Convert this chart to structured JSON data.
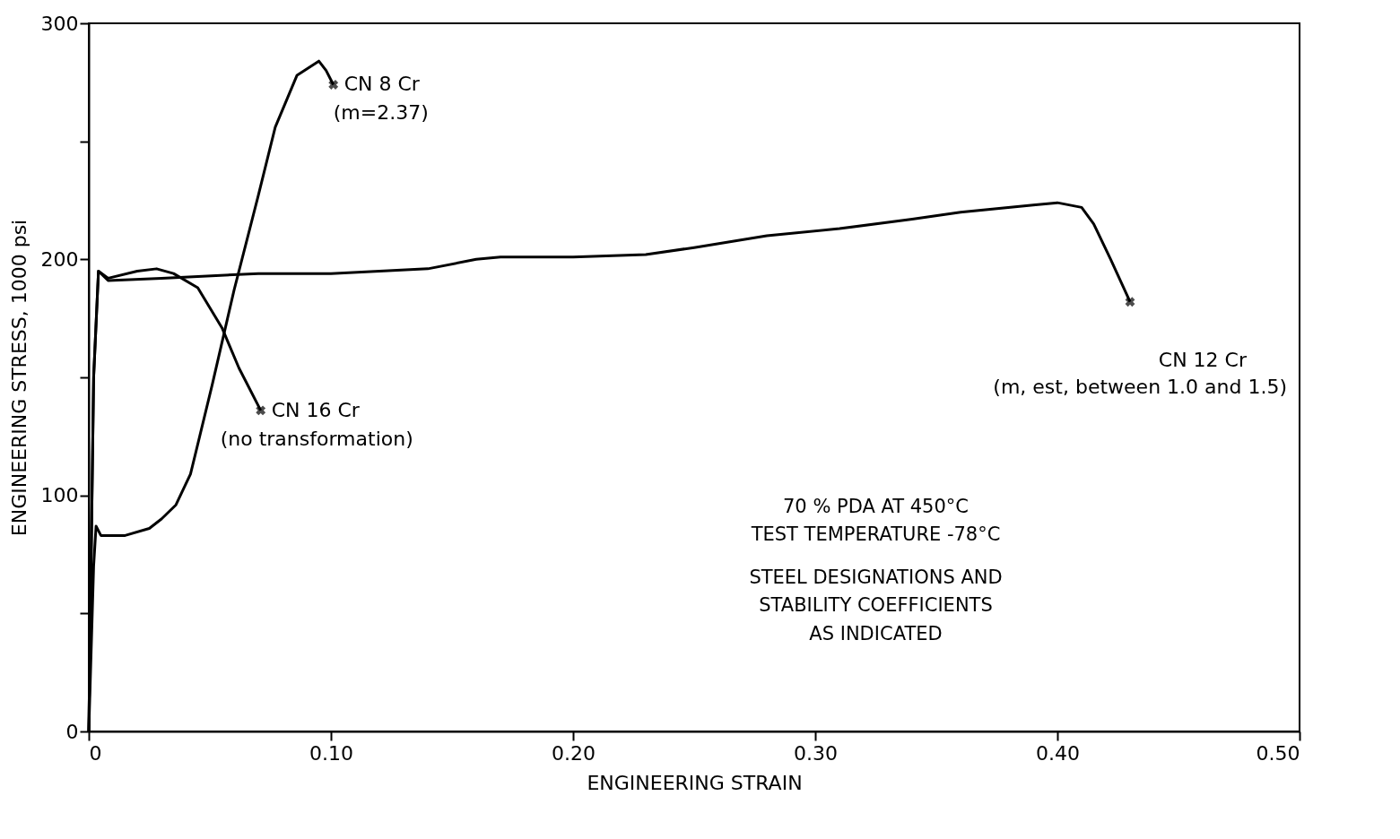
{
  "chart_data": {
    "type": "line",
    "xlabel": "ENGINEERING  STRAIN",
    "ylabel": "ENGINEERING  STRESS, 1000 psi",
    "xlim": [
      0,
      0.5
    ],
    "ylim": [
      0,
      300
    ],
    "xticks": [
      {
        "value": 0,
        "label": "0"
      },
      {
        "value": 0.1,
        "label": "0.10"
      },
      {
        "value": 0.2,
        "label": "0.20"
      },
      {
        "value": 0.3,
        "label": "0.30"
      },
      {
        "value": 0.4,
        "label": "0.40"
      },
      {
        "value": 0.5,
        "label": "0.50"
      }
    ],
    "yticks": [
      0,
      {
        "value": 50,
        "label": null
      },
      100,
      {
        "value": 150,
        "label": null
      },
      200,
      {
        "value": 250,
        "label": null
      },
      300
    ],
    "grid": false,
    "line_style": "solid",
    "series": [
      {
        "name": "CN 8 Cr",
        "color": "#000000",
        "x": [
          0,
          0.002,
          0.003,
          0.005,
          0.01,
          0.015,
          0.025,
          0.03,
          0.036,
          0.042,
          0.051,
          0.06,
          0.07,
          0.077,
          0.086,
          0.095,
          0.098,
          0.101
        ],
        "values": [
          0,
          70,
          87,
          83,
          83,
          83,
          86,
          90,
          96,
          109,
          147,
          187,
          227,
          256,
          278,
          284,
          280,
          274
        ]
      },
      {
        "name": "CN 16 Cr",
        "color": "#000000",
        "x": [
          0,
          0.002,
          0.004,
          0.008,
          0.02,
          0.028,
          0.035,
          0.045,
          0.055,
          0.062,
          0.071
        ],
        "values": [
          0,
          150,
          195,
          192,
          195,
          196,
          194,
          188,
          171,
          154,
          136
        ]
      },
      {
        "name": "CN 12 Cr",
        "color": "#000000",
        "x": [
          0,
          0.002,
          0.004,
          0.008,
          0.03,
          0.07,
          0.1,
          0.12,
          0.14,
          0.16,
          0.17,
          0.2,
          0.23,
          0.25,
          0.28,
          0.31,
          0.34,
          0.36,
          0.39,
          0.4,
          0.41,
          0.415,
          0.422,
          0.43
        ],
        "values": [
          0,
          150,
          195,
          191,
          192,
          194,
          194,
          195,
          196,
          200,
          201,
          201,
          202,
          205,
          210,
          213,
          217,
          220,
          223,
          224,
          222,
          215,
          200,
          182
        ]
      }
    ],
    "annotations": [
      "(m=2.37)",
      "(no transformation)",
      "(m, est, between 1.0 and 1.5)",
      "70 % PDA AT 450°C",
      "TEST TEMPERATURE -78°C",
      "STEEL DESIGNATIONS AND",
      "STABILITY COEFFICIENTS",
      "AS INDICATED"
    ]
  }
}
